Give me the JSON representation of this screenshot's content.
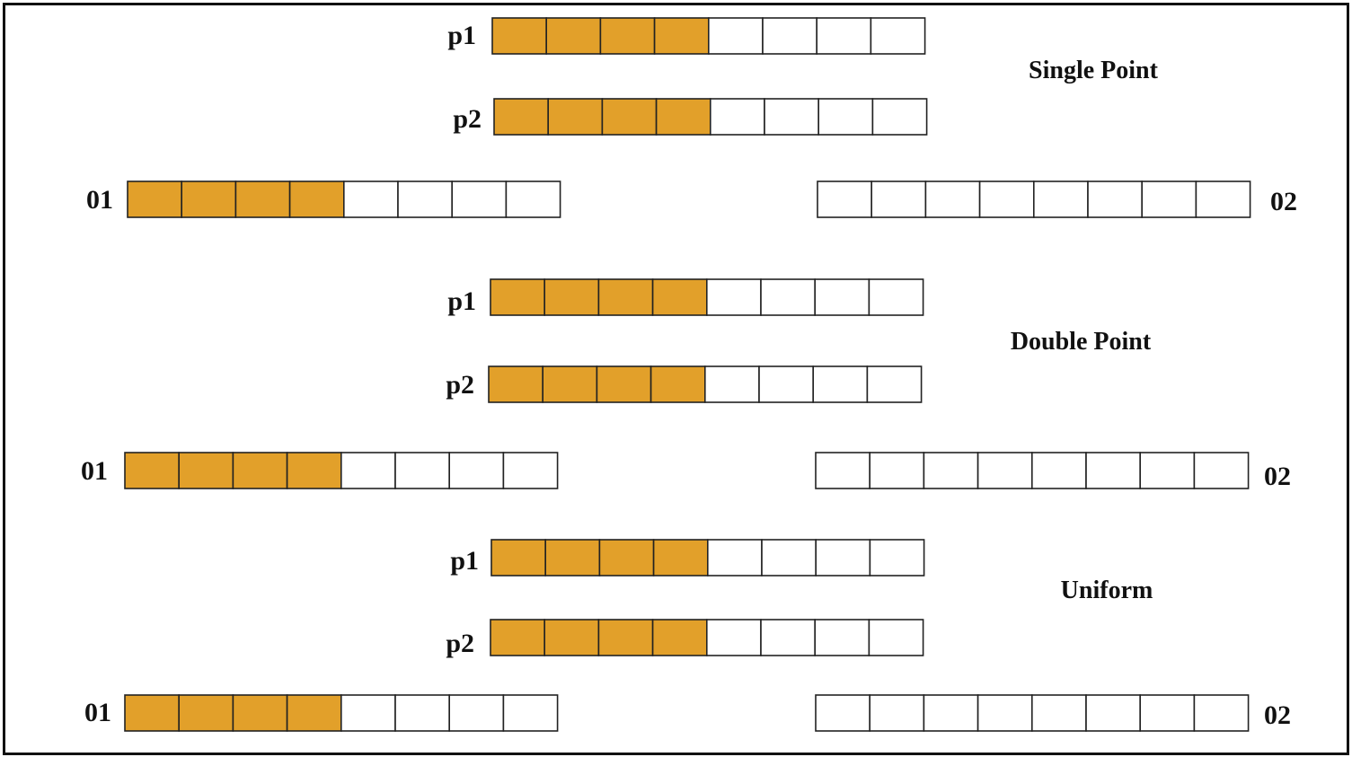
{
  "colors": {
    "filled": "#E2A02A",
    "empty": "#FFFFFF",
    "stroke": "#222222"
  },
  "genes_per_chromosome": 8,
  "sections": [
    {
      "title": "Single Point",
      "parent1": {
        "label": "p1",
        "filled": [
          0,
          1,
          2,
          3
        ]
      },
      "parent2": {
        "label": "p2",
        "filled": [
          0,
          1,
          2,
          3
        ]
      },
      "offspring1": {
        "label": "01",
        "filled": [
          0,
          1,
          2,
          3
        ]
      },
      "offspring2": {
        "label": "02",
        "filled": []
      }
    },
    {
      "title": "Double Point",
      "parent1": {
        "label": "p1",
        "filled": [
          0,
          1,
          2,
          3
        ]
      },
      "parent2": {
        "label": "p2",
        "filled": [
          0,
          1,
          2,
          3
        ]
      },
      "offspring1": {
        "label": "01",
        "filled": [
          0,
          1,
          2,
          3
        ]
      },
      "offspring2": {
        "label": "02",
        "filled": []
      }
    },
    {
      "title": "Uniform",
      "parent1": {
        "label": "p1",
        "filled": [
          0,
          1,
          2,
          3
        ]
      },
      "parent2": {
        "label": "p2",
        "filled": [
          0,
          1,
          2,
          3
        ]
      },
      "offspring1": {
        "label": "01",
        "filled": [
          0,
          1,
          2,
          3
        ]
      },
      "offspring2": {
        "label": "02",
        "filled": []
      }
    }
  ]
}
